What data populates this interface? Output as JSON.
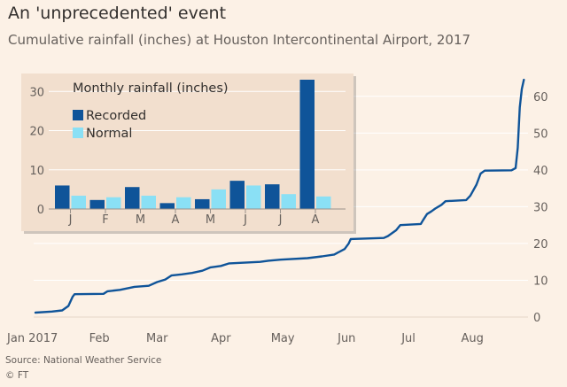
{
  "title": "An 'unprecedented' event",
  "subtitle": "Cumulative rainfall (inches) at Houston Intercontinental Airport, 2017",
  "source": "Source: National Weather Service",
  "credit": "© FT",
  "colors": {
    "background": "#fcf1e6",
    "line": "#0f5499",
    "recorded": "#0f5499",
    "normal": "#8ae0f5",
    "inset_bg": "#f2dfce",
    "grid": "#ffffff"
  },
  "chart_data": [
    {
      "type": "line",
      "title": "Cumulative rainfall (inches) at Houston Intercontinental Airport, 2017",
      "x_unit": "day of year",
      "xlim": [
        1,
        240
      ],
      "ylim": [
        0,
        65
      ],
      "y_ticks": [
        0,
        10,
        20,
        30,
        40,
        50,
        60
      ],
      "x_ticks": [
        {
          "label": "Jan 2017",
          "day": 1
        },
        {
          "label": "Feb",
          "day": 32
        },
        {
          "label": "Mar",
          "day": 60
        },
        {
          "label": "Apr",
          "day": 91
        },
        {
          "label": "May",
          "day": 121
        },
        {
          "label": "Jun",
          "day": 152
        },
        {
          "label": "Jul",
          "day": 182
        },
        {
          "label": "Aug",
          "day": 213
        }
      ],
      "series": [
        {
          "name": "Cumulative rainfall",
          "points": [
            [
              1,
              1.2
            ],
            [
              9,
              1.5
            ],
            [
              14,
              1.8
            ],
            [
              17,
              3.0
            ],
            [
              19,
              5.5
            ],
            [
              20,
              6.2
            ],
            [
              34,
              6.3
            ],
            [
              36,
              7.0
            ],
            [
              42,
              7.4
            ],
            [
              49,
              8.2
            ],
            [
              56,
              8.5
            ],
            [
              60,
              9.5
            ],
            [
              64,
              10.2
            ],
            [
              67,
              11.3
            ],
            [
              72,
              11.6
            ],
            [
              77,
              12.0
            ],
            [
              82,
              12.6
            ],
            [
              86,
              13.5
            ],
            [
              91,
              13.9
            ],
            [
              95,
              14.6
            ],
            [
              110,
              15.0
            ],
            [
              114,
              15.3
            ],
            [
              120,
              15.6
            ],
            [
              133,
              16.0
            ],
            [
              140,
              16.5
            ],
            [
              146,
              17.0
            ],
            [
              151,
              18.5
            ],
            [
              153,
              20.0
            ],
            [
              154,
              21.2
            ],
            [
              170,
              21.5
            ],
            [
              172,
              22.0
            ],
            [
              176,
              23.6
            ],
            [
              178,
              25.0
            ],
            [
              188,
              25.3
            ],
            [
              189,
              26.3
            ],
            [
              191,
              28.0
            ],
            [
              193,
              28.7
            ],
            [
              195,
              29.5
            ],
            [
              198,
              30.5
            ],
            [
              200,
              31.5
            ],
            [
              210,
              31.8
            ],
            [
              212,
              33.0
            ],
            [
              213,
              34.0
            ],
            [
              215,
              36.0
            ],
            [
              217,
              39.0
            ],
            [
              219,
              39.8
            ],
            [
              232,
              39.9
            ],
            [
              234,
              40.5
            ],
            [
              235,
              46.0
            ],
            [
              236,
              57.0
            ],
            [
              237,
              62.0
            ],
            [
              238,
              64.5
            ]
          ]
        }
      ]
    },
    {
      "type": "bar",
      "title": "Monthly rainfall (inches)",
      "categories": [
        "J",
        "F",
        "M",
        "A",
        "M",
        "J",
        "J",
        "A"
      ],
      "ylim": [
        0,
        33
      ],
      "y_ticks": [
        0,
        10,
        20,
        30
      ],
      "series": [
        {
          "name": "Recorded",
          "values": [
            6.0,
            2.3,
            5.6,
            1.5,
            2.5,
            7.2,
            6.3,
            33.0
          ]
        },
        {
          "name": "Normal",
          "values": [
            3.4,
            3.0,
            3.4,
            3.0,
            5.0,
            6.0,
            3.8,
            3.2
          ]
        }
      ]
    }
  ]
}
